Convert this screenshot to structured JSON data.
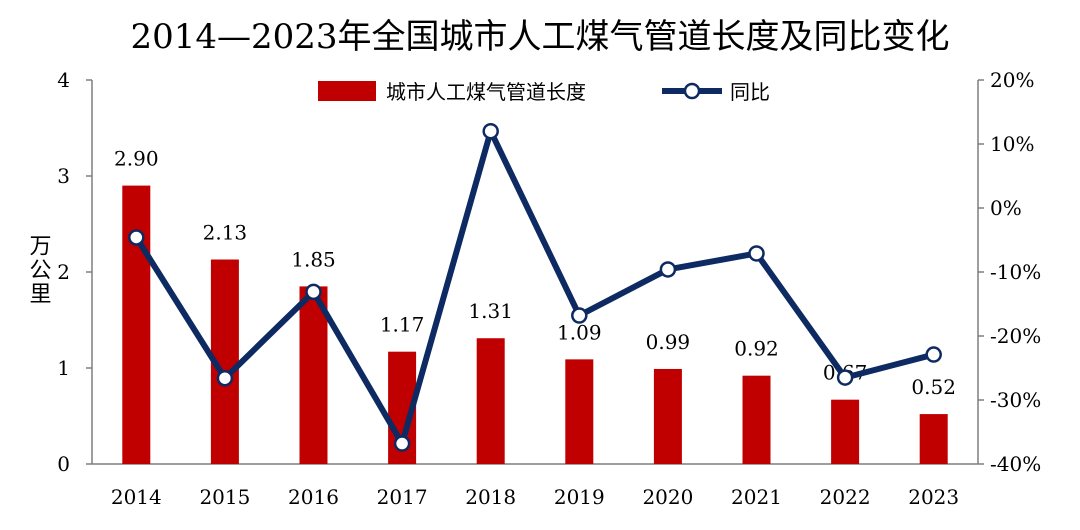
{
  "chart_data": {
    "type": "bar+line",
    "title": "2014—2023年全国城市人工煤气管道长度及同比变化",
    "categories": [
      "2014",
      "2015",
      "2016",
      "2017",
      "2018",
      "2019",
      "2020",
      "2021",
      "2022",
      "2023"
    ],
    "series": [
      {
        "name": "城市人工煤气管道长度",
        "type": "bar",
        "axis": "left",
        "color": "#C00000",
        "values": [
          2.9,
          2.13,
          1.85,
          1.17,
          1.31,
          1.09,
          0.99,
          0.92,
          0.67,
          0.52
        ],
        "labels": [
          "2.90",
          "2.13",
          "1.85",
          "1.17",
          "1.31",
          "1.09",
          "0.99",
          "0.92",
          "0.67",
          "0.52"
        ]
      },
      {
        "name": "同比",
        "type": "line",
        "axis": "right",
        "color": "#0E2A62",
        "marker": "circle-open",
        "values": [
          -4.6,
          -26.6,
          -13.1,
          -36.8,
          12.0,
          -16.8,
          -9.6,
          -7.1,
          -26.5,
          -22.9
        ]
      }
    ],
    "ylabel_left": "万公里",
    "ylim_left": [
      0,
      4
    ],
    "yticks_left": [
      "0",
      "1",
      "2",
      "3",
      "4"
    ],
    "ylim_right": [
      -40,
      20
    ],
    "yticks_right": [
      "-40%",
      "-30%",
      "-20%",
      "-10%",
      "0%",
      "10%",
      "20%"
    ],
    "legend": "top-center",
    "grid": false
  }
}
